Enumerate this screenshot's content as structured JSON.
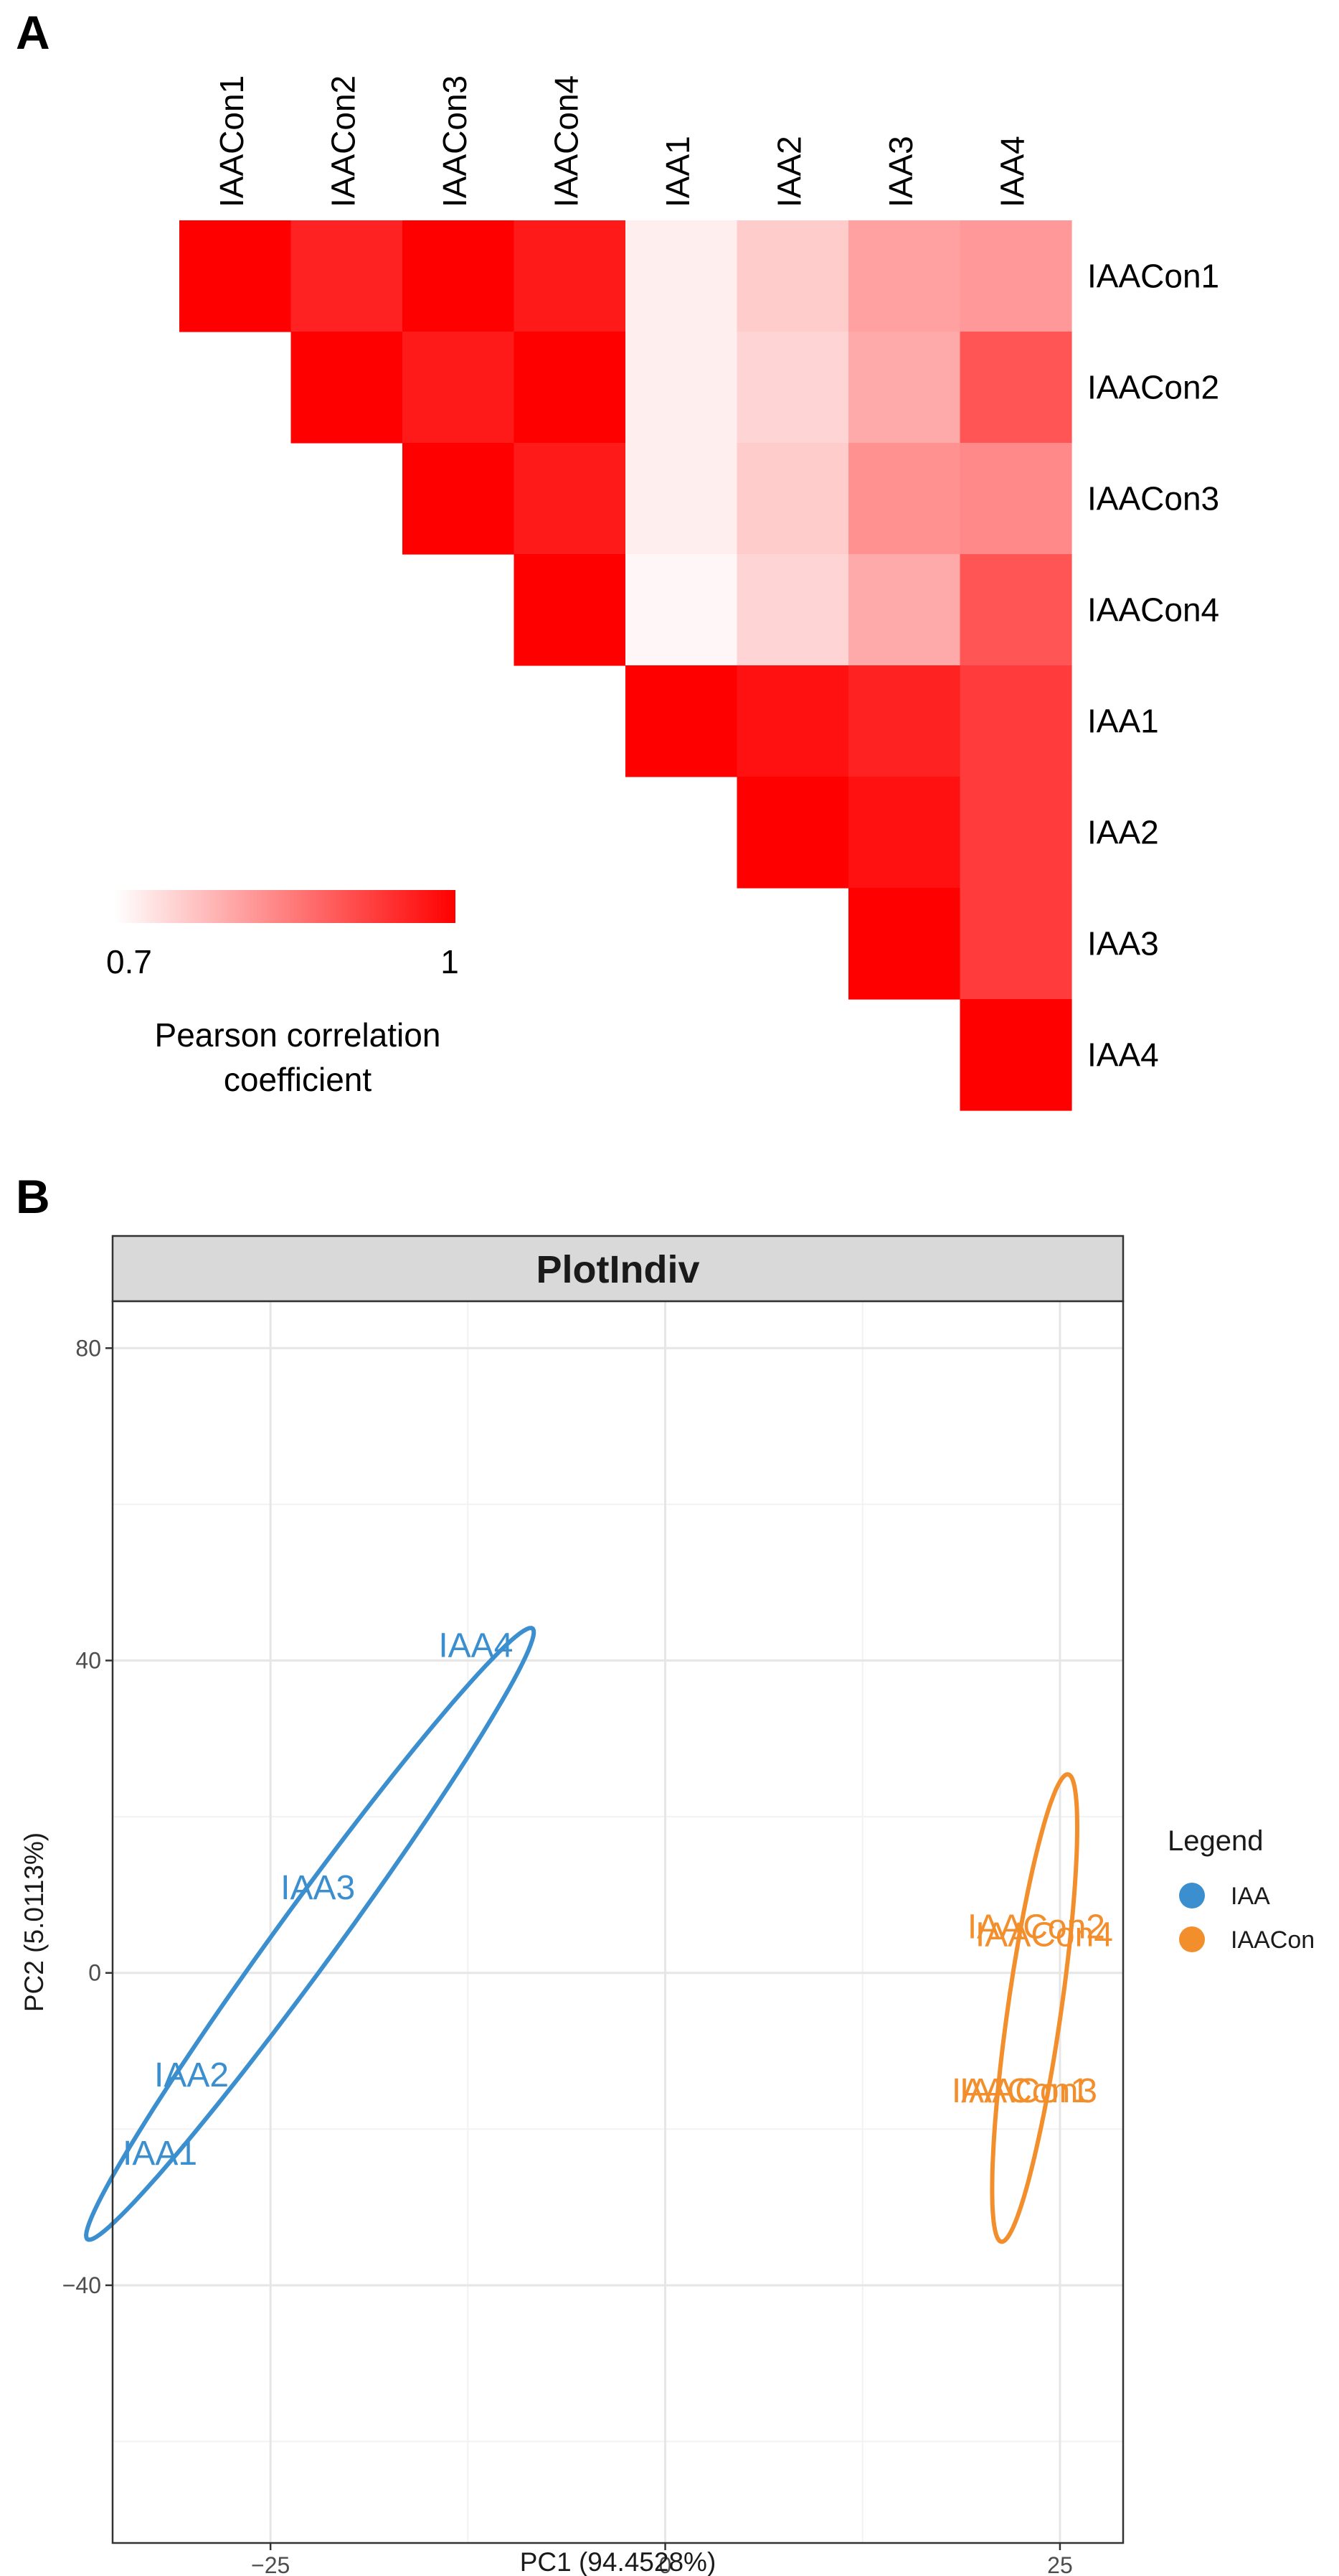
{
  "panels": {
    "a": "A",
    "b": "B"
  },
  "chart_data": [
    {
      "type": "heatmap",
      "layout": "upper-triangle",
      "samples": [
        "IAACon1",
        "IAACon2",
        "IAACon3",
        "IAACon4",
        "IAA1",
        "IAA2",
        "IAA3",
        "IAA4"
      ],
      "matrix": [
        [
          1.0,
          0.96,
          1.0,
          0.97,
          0.72,
          0.76,
          0.81,
          0.82
        ],
        [
          null,
          1.0,
          0.97,
          1.0,
          0.72,
          0.75,
          0.8,
          0.9
        ],
        [
          null,
          null,
          1.0,
          0.97,
          0.72,
          0.76,
          0.83,
          0.84
        ],
        [
          null,
          null,
          null,
          1.0,
          0.71,
          0.75,
          0.8,
          0.9
        ],
        [
          null,
          null,
          null,
          null,
          1.0,
          0.98,
          0.96,
          0.93
        ],
        [
          null,
          null,
          null,
          null,
          null,
          1.0,
          0.98,
          0.93
        ],
        [
          null,
          null,
          null,
          null,
          null,
          null,
          1.0,
          0.93
        ],
        [
          null,
          null,
          null,
          null,
          null,
          null,
          null,
          1.0
        ]
      ],
      "color_low": "#ffffff",
      "color_high": "#ff0000",
      "scale_min": 0.7,
      "scale_max": 1,
      "legend_min_label": "0.7",
      "legend_max_label": "1",
      "legend_title_lines": [
        "Pearson correlation",
        "coefficient"
      ]
    },
    {
      "type": "scatter",
      "title": "PlotIndiv",
      "xlabel": "PC1 (94.4528%)",
      "ylabel": "PC2 (5.0113%)",
      "xlim": [
        -35,
        29
      ],
      "ylim": [
        -73,
        86
      ],
      "xticks": [
        -25,
        0,
        25
      ],
      "xtick_labels": [
        "−25",
        "0",
        "25"
      ],
      "yticks": [
        -40,
        0,
        40,
        80
      ],
      "ytick_labels": [
        "−40",
        "0",
        "40",
        "80"
      ],
      "grid": true,
      "legend_title": "Legend",
      "groups": [
        {
          "name": "IAA",
          "color": "#3b8fcf",
          "points": [
            {
              "label": "IAA4",
              "x": -12,
              "y": 42
            },
            {
              "label": "IAA3",
              "x": -22,
              "y": 11
            },
            {
              "label": "IAA2",
              "x": -30,
              "y": -13
            },
            {
              "label": "IAA1",
              "x": -32,
              "y": -23
            }
          ],
          "ellipse": {
            "cx": -22.5,
            "cy": 5,
            "rx": 41.6,
            "ry": 2.2,
            "angle_deg": 70.3
          }
        },
        {
          "name": "IAACon",
          "color": "#f28e2b",
          "points": [
            {
              "label": "IAACon2",
              "x": 23.5,
              "y": 6
            },
            {
              "label": "IAACon4",
              "x": 24,
              "y": 5
            },
            {
              "label": "IAACon1",
              "x": 22.5,
              "y": -15
            },
            {
              "label": "IAACon3",
              "x": 23,
              "y": -15
            }
          ],
          "ellipse": {
            "cx": 23.4,
            "cy": -4.5,
            "rx": 30,
            "ry": 1.7,
            "angle_deg": 86
          }
        }
      ]
    }
  ]
}
